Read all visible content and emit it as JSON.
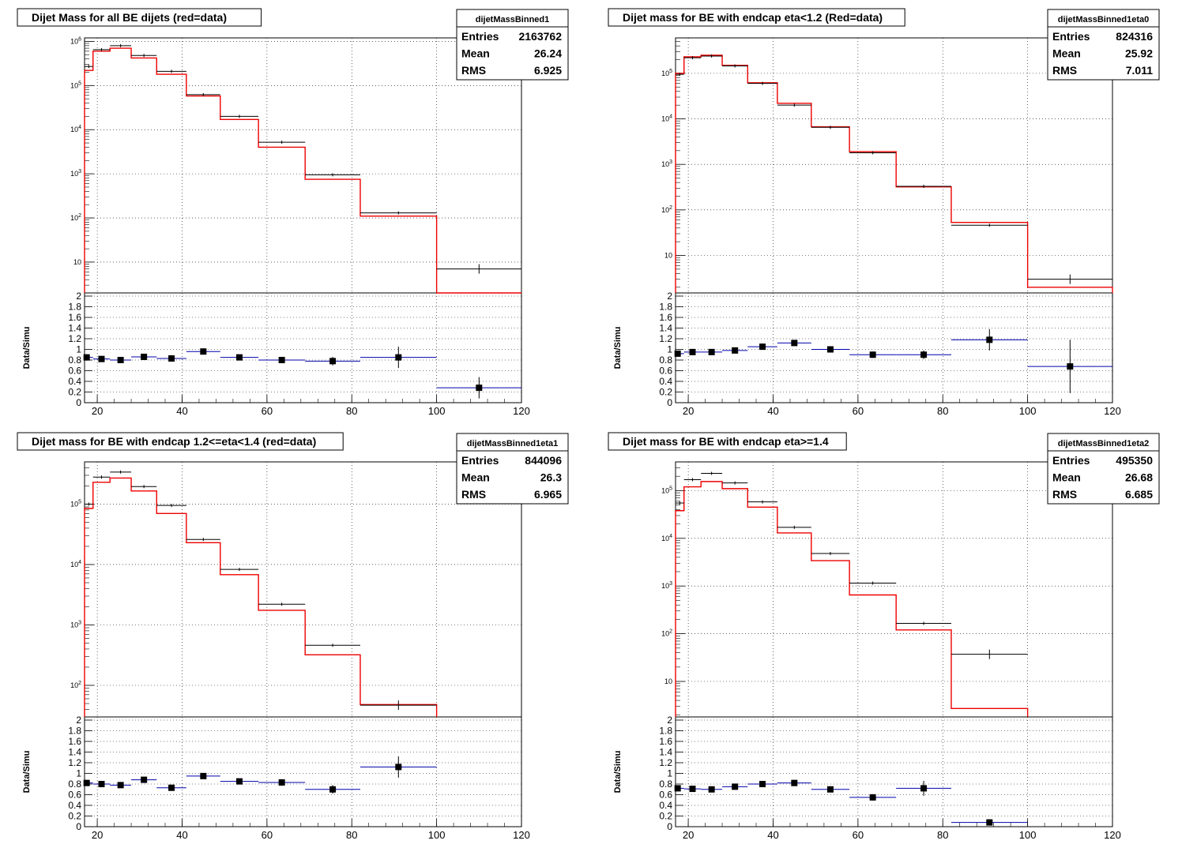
{
  "chart_data": [
    {
      "type": "histogram",
      "title": "Dijet Mass for all BE dijets (red=data)",
      "stats": {
        "name": "dijetMassBinned1",
        "rows": [
          [
            "Entries",
            "2163762"
          ],
          [
            "Mean",
            "26.24"
          ],
          [
            "RMS",
            "6.925"
          ]
        ]
      },
      "x_ticks": [
        "20",
        "40",
        "60",
        "80",
        "100",
        "120"
      ],
      "xlim": [
        17,
        120
      ],
      "log_decades": [
        1,
        6
      ],
      "log_ymin": 2,
      "log_ymax": 1200000,
      "y_tick_labels": [
        {
          "v": 1000000,
          "t": "10^6"
        },
        {
          "v": 100000,
          "t": "10^5"
        },
        {
          "v": 10000,
          "t": "10^4"
        },
        {
          "v": 1000,
          "t": "10^3"
        },
        {
          "v": 100,
          "t": "10^2"
        },
        {
          "v": 10,
          "t": "10"
        }
      ],
      "bin_edges": [
        17,
        19,
        23,
        28,
        34,
        41,
        49,
        58,
        69,
        82,
        100,
        120
      ],
      "red_values": [
        220000,
        600000,
        700000,
        420000,
        180000,
        58000,
        17000,
        4000,
        750,
        110,
        2
      ],
      "black_values": [
        270000,
        650000,
        800000,
        480000,
        210000,
        62000,
        20000,
        5200,
        950,
        130,
        7
      ],
      "ratio": {
        "ylabel": "Data/Simu",
        "y_ticks": [
          "0",
          "0.2",
          "0.4",
          "0.6",
          "0.8",
          "1",
          "1.2",
          "1.4",
          "1.6",
          "1.8",
          "2"
        ],
        "ylim": [
          0,
          2
        ],
        "points": [
          [
            17.5,
            0.85,
            0.06
          ],
          [
            21,
            0.82,
            0.03
          ],
          [
            25.5,
            0.8,
            0.03
          ],
          [
            31,
            0.86,
            0.03
          ],
          [
            37.5,
            0.83,
            0.03
          ],
          [
            45,
            0.96,
            0.04
          ],
          [
            53.5,
            0.85,
            0.05
          ],
          [
            63.5,
            0.8,
            0.06
          ],
          [
            75.5,
            0.78,
            0.08
          ],
          [
            91,
            0.85,
            0.2
          ],
          [
            110,
            0.28,
            0.2
          ]
        ]
      }
    },
    {
      "type": "histogram",
      "title": "Dijet mass for BE with endcap eta<1.2 (Red=data)",
      "stats": {
        "name": "dijetMassBinned1eta0",
        "rows": [
          [
            "Entries",
            "824316"
          ],
          [
            "Mean",
            "25.92"
          ],
          [
            "RMS",
            "7.011"
          ]
        ]
      },
      "x_ticks": [
        "20",
        "40",
        "60",
        "80",
        "100",
        "120"
      ],
      "xlim": [
        17,
        120
      ],
      "log_decades": [
        1,
        5
      ],
      "log_ymin": 1.5,
      "log_ymax": 600000,
      "y_tick_labels": [
        {
          "v": 100000,
          "t": "10^5"
        },
        {
          "v": 10000,
          "t": "10^4"
        },
        {
          "v": 1000,
          "t": "10^3"
        },
        {
          "v": 100,
          "t": "10^2"
        },
        {
          "v": 10,
          "t": "10"
        }
      ],
      "bin_edges": [
        17,
        19,
        23,
        28,
        34,
        41,
        49,
        58,
        69,
        82,
        100,
        120
      ],
      "red_values": [
        100000,
        230000,
        250000,
        150000,
        62000,
        22000,
        6700,
        1900,
        320,
        53,
        2
      ],
      "black_values": [
        95000,
        220000,
        240000,
        145000,
        60000,
        20000,
        6500,
        1800,
        330,
        46,
        3
      ],
      "ratio": {
        "ylabel": "Data/Simu",
        "y_ticks": [
          "0",
          "0.2",
          "0.4",
          "0.6",
          "0.8",
          "1",
          "1.2",
          "1.4",
          "1.6",
          "1.8",
          "2"
        ],
        "ylim": [
          0,
          2
        ],
        "points": [
          [
            17.5,
            0.92,
            0.05
          ],
          [
            21,
            0.95,
            0.03
          ],
          [
            25.5,
            0.95,
            0.03
          ],
          [
            31,
            0.98,
            0.03
          ],
          [
            37.5,
            1.05,
            0.03
          ],
          [
            45,
            1.12,
            0.04
          ],
          [
            53.5,
            1.0,
            0.05
          ],
          [
            63.5,
            0.9,
            0.06
          ],
          [
            75.5,
            0.9,
            0.08
          ],
          [
            91,
            1.18,
            0.2
          ],
          [
            110,
            0.68,
            0.5
          ]
        ]
      }
    },
    {
      "type": "histogram",
      "title": "Dijet mass for BE with endcap 1.2<=eta<1.4 (red=data)",
      "stats": {
        "name": "dijetMassBinned1eta1",
        "rows": [
          [
            "Entries",
            "844096"
          ],
          [
            "Mean",
            "26.3"
          ],
          [
            "RMS",
            "6.965"
          ]
        ]
      },
      "x_ticks": [
        "20",
        "40",
        "60",
        "80",
        "100",
        "120"
      ],
      "xlim": [
        17,
        120
      ],
      "log_decades": [
        2,
        5
      ],
      "log_ymin": 30,
      "log_ymax": 500000,
      "y_tick_labels": [
        {
          "v": 100000,
          "t": "10^5"
        },
        {
          "v": 10000,
          "t": "10^4"
        },
        {
          "v": 1000,
          "t": "10^3"
        },
        {
          "v": 100,
          "t": "10^2"
        }
      ],
      "bin_edges": [
        17,
        19,
        23,
        28,
        34,
        41,
        49,
        58,
        69,
        82,
        100
      ],
      "red_values": [
        85000,
        230000,
        270000,
        165000,
        70000,
        23000,
        6800,
        1750,
        320,
        48
      ],
      "black_values": [
        100000,
        280000,
        340000,
        195000,
        95000,
        26000,
        8300,
        2200,
        460,
        47
      ],
      "ratio": {
        "ylabel": "Data/Simu",
        "y_ticks": [
          "0",
          "0.2",
          "0.4",
          "0.6",
          "0.8",
          "1",
          "1.2",
          "1.4",
          "1.6",
          "1.8",
          "2"
        ],
        "ylim": [
          0,
          2
        ],
        "points": [
          [
            17.5,
            0.82,
            0.05
          ],
          [
            21,
            0.8,
            0.03
          ],
          [
            25.5,
            0.78,
            0.03
          ],
          [
            31,
            0.88,
            0.03
          ],
          [
            37.5,
            0.73,
            0.05
          ],
          [
            45,
            0.95,
            0.04
          ],
          [
            53.5,
            0.85,
            0.05
          ],
          [
            63.5,
            0.83,
            0.06
          ],
          [
            75.5,
            0.7,
            0.08
          ],
          [
            91,
            1.12,
            0.2
          ]
        ]
      }
    },
    {
      "type": "histogram",
      "title": "Dijet mass for BE with endcap eta>=1.4",
      "stats": {
        "name": "dijetMassBinned1eta2",
        "rows": [
          [
            "Entries",
            "495350"
          ],
          [
            "Mean",
            "26.68"
          ],
          [
            "RMS",
            "6.685"
          ]
        ]
      },
      "x_ticks": [
        "20",
        "40",
        "60",
        "80",
        "100",
        "120"
      ],
      "xlim": [
        17,
        120
      ],
      "log_decades": [
        1,
        5
      ],
      "log_ymin": 1.8,
      "log_ymax": 400000,
      "y_tick_labels": [
        {
          "v": 100000,
          "t": "10^5"
        },
        {
          "v": 10000,
          "t": "10^4"
        },
        {
          "v": 1000,
          "t": "10^3"
        },
        {
          "v": 100,
          "t": "10^2"
        },
        {
          "v": 10,
          "t": "10"
        }
      ],
      "bin_edges": [
        17,
        19,
        23,
        28,
        34,
        41,
        49,
        58,
        69,
        82,
        100
      ],
      "red_values": [
        38000,
        120000,
        155000,
        110000,
        45000,
        13000,
        3400,
        650,
        120,
        2.7
      ],
      "black_values": [
        55000,
        170000,
        230000,
        145000,
        58000,
        17000,
        4800,
        1150,
        165,
        37
      ],
      "ratio": {
        "ylabel": "Data/Simu",
        "y_ticks": [
          "0",
          "0.2",
          "0.4",
          "0.6",
          "0.8",
          "1",
          "1.2",
          "1.4",
          "1.6",
          "1.8",
          "2"
        ],
        "ylim": [
          0,
          2
        ],
        "points": [
          [
            17.5,
            0.72,
            0.05
          ],
          [
            21,
            0.71,
            0.03
          ],
          [
            25.5,
            0.7,
            0.03
          ],
          [
            31,
            0.75,
            0.03
          ],
          [
            37.5,
            0.8,
            0.03
          ],
          [
            45,
            0.82,
            0.04
          ],
          [
            53.5,
            0.7,
            0.05
          ],
          [
            63.5,
            0.55,
            0.06
          ],
          [
            75.5,
            0.72,
            0.14
          ],
          [
            91,
            0.08,
            0.03
          ]
        ]
      }
    }
  ]
}
